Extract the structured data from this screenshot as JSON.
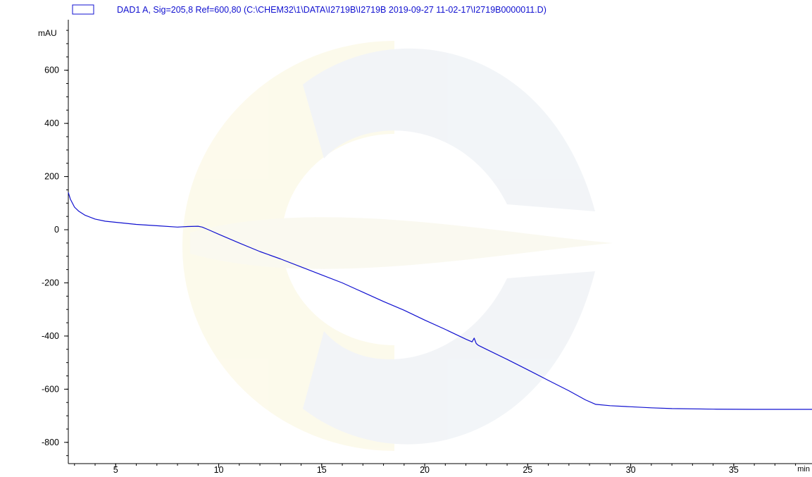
{
  "chart_data": {
    "type": "line",
    "legend": {
      "label": "DAD1 A, Sig=205,8 Ref=600,80 (C:\\CHEM32\\1\\DATA\\I2719B\\I2719B 2019-09-27 11-02-17\\I2719B0000011.D)",
      "placement": "top-left",
      "color": "#1010d0"
    },
    "ylabel": "mAU",
    "xlabel": "min",
    "xlim": [
      2.7,
      38.8
    ],
    "ylim": [
      -880,
      790
    ],
    "x_ticks": [
      5,
      10,
      15,
      20,
      25,
      30,
      35
    ],
    "x_tick_labels": [
      "5",
      "10",
      "15",
      "20",
      "25",
      "30",
      "35"
    ],
    "x_minor_step": 1,
    "y_ticks": [
      600,
      400,
      200,
      0,
      -200,
      -400,
      -600,
      -800
    ],
    "y_tick_labels": [
      "600",
      "400",
      "200",
      "0",
      "-200",
      "-400",
      "-600",
      "-800"
    ],
    "y_minor_step": 50,
    "grid": false,
    "series": [
      {
        "color": "#1010d0",
        "x": [
          2.7,
          2.8,
          3.0,
          3.2,
          3.5,
          4.0,
          4.5,
          5.0,
          6.0,
          7.0,
          8.0,
          8.5,
          9.0,
          9.2,
          9.5,
          10.0,
          11.0,
          12.0,
          13.0,
          14.0,
          15.0,
          16.0,
          17.0,
          18.0,
          19.0,
          20.0,
          21.0,
          22.0,
          22.3,
          22.4,
          22.5,
          22.6,
          23.0,
          24.0,
          25.0,
          26.0,
          27.0,
          27.8,
          28.3,
          29.0,
          30.0,
          31.0,
          32.0,
          34.0,
          36.0,
          38.8
        ],
        "y": [
          140,
          115,
          85,
          70,
          55,
          40,
          32,
          28,
          20,
          15,
          10,
          12,
          13,
          10,
          0,
          -17,
          -50,
          -82,
          -110,
          -140,
          -170,
          -200,
          -235,
          -270,
          -303,
          -340,
          -375,
          -412,
          -422,
          -408,
          -428,
          -435,
          -450,
          -488,
          -527,
          -567,
          -606,
          -640,
          -657,
          -662,
          -666,
          -670,
          -673,
          -675,
          -676,
          -676
        ]
      }
    ]
  }
}
